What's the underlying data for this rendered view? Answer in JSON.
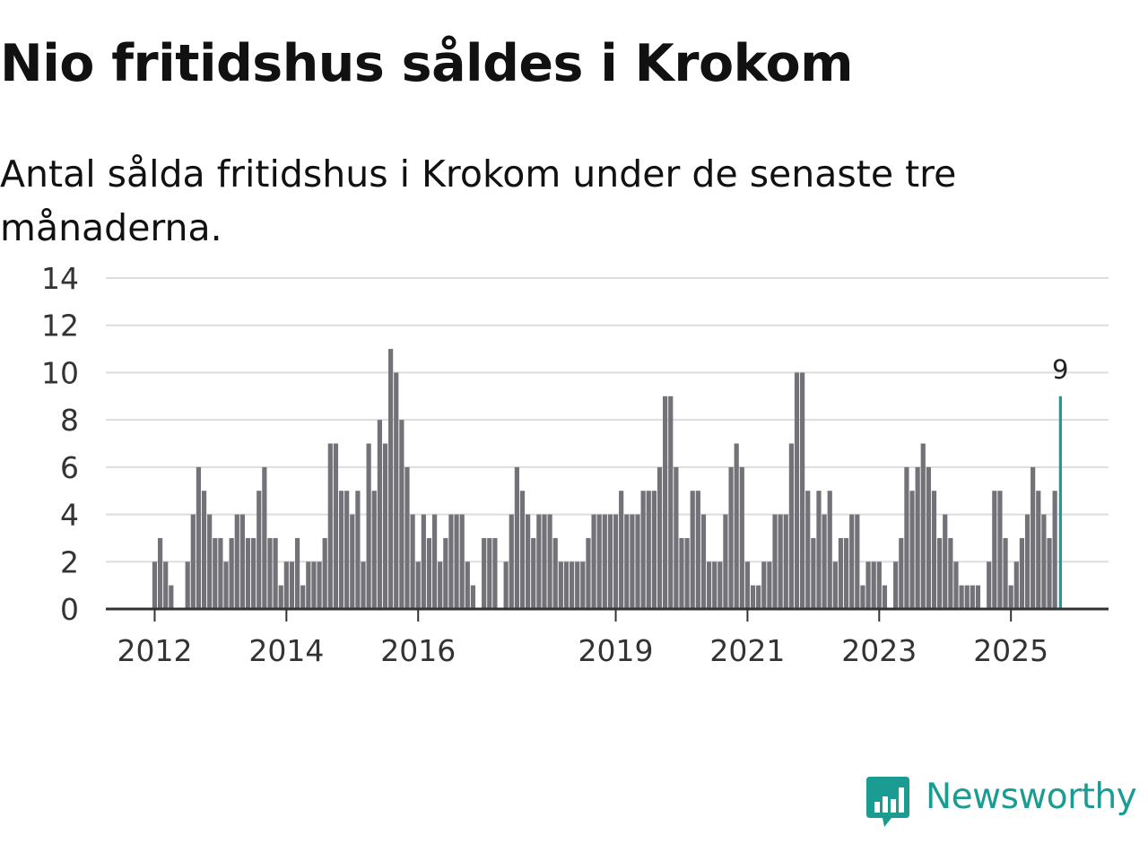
{
  "title": "Nio fritidshus såldes i Krokom",
  "subtitle": "Antal sålda fritidshus i Krokom under de senaste tre månaderna.",
  "brand": {
    "name": "Newsworthy",
    "icon": "newsworthy-logo-icon",
    "color": "#1a9c92"
  },
  "chart_data": {
    "type": "bar",
    "title": "Nio fritidshus såldes i Krokom",
    "xlabel": "",
    "ylabel": "",
    "ylim": [
      0,
      14
    ],
    "yticks": [
      "0",
      "2",
      "4",
      "6",
      "8",
      "10",
      "12",
      "14"
    ],
    "xticks": [
      {
        "label": "2012",
        "index": 8
      },
      {
        "label": "2014",
        "index": 32
      },
      {
        "label": "2016",
        "index": 56
      },
      {
        "label": "2019",
        "index": 92
      },
      {
        "label": "2021",
        "index": 116
      },
      {
        "label": "2023",
        "index": 140
      },
      {
        "label": "2025",
        "index": 164
      }
    ],
    "start": "2011-05",
    "values": [
      0,
      0,
      0,
      0,
      0,
      0,
      0,
      0,
      2,
      3,
      2,
      1,
      0,
      0,
      2,
      4,
      6,
      5,
      4,
      3,
      3,
      2,
      3,
      4,
      4,
      3,
      3,
      5,
      6,
      3,
      3,
      1,
      2,
      2,
      3,
      1,
      2,
      2,
      2,
      3,
      7,
      7,
      5,
      5,
      4,
      5,
      2,
      7,
      5,
      8,
      7,
      11,
      10,
      8,
      6,
      4,
      2,
      4,
      3,
      4,
      2,
      3,
      4,
      4,
      4,
      2,
      1,
      0,
      3,
      3,
      3,
      0,
      2,
      4,
      6,
      5,
      4,
      3,
      4,
      4,
      4,
      3,
      2,
      2,
      2,
      2,
      2,
      3,
      4,
      4,
      4,
      4,
      4,
      5,
      4,
      4,
      4,
      5,
      5,
      5,
      6,
      9,
      9,
      6,
      3,
      3,
      5,
      5,
      4,
      2,
      2,
      2,
      4,
      6,
      7,
      6,
      2,
      1,
      1,
      2,
      2,
      4,
      4,
      4,
      7,
      10,
      10,
      5,
      3,
      5,
      4,
      5,
      2,
      3,
      3,
      4,
      4,
      1,
      2,
      2,
      2,
      1,
      0,
      2,
      3,
      6,
      5,
      6,
      7,
      6,
      5,
      3,
      4,
      3,
      2,
      1,
      1,
      1,
      1,
      0,
      2,
      5,
      5,
      3,
      1,
      2,
      3,
      4,
      6,
      5,
      4,
      3,
      5,
      9
    ],
    "highlight": {
      "index": 173,
      "value": 9,
      "label": "9",
      "color": "#1a9c92"
    },
    "bar_color": "#737278",
    "grid": true
  }
}
